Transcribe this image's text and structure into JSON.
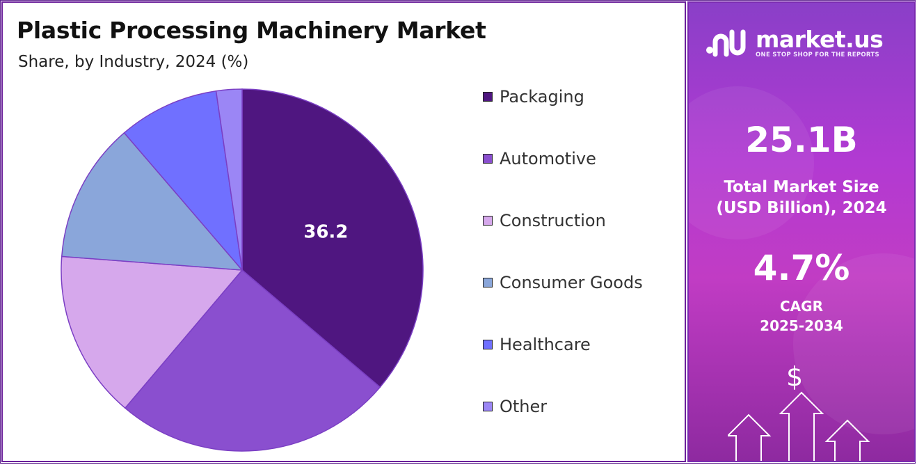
{
  "title": "Plastic Processing Machinery Market",
  "subtitle": "Share, by Industry, 2024 (%)",
  "chart_data": {
    "type": "pie",
    "title": "Plastic Processing Machinery Market",
    "subtitle": "Share, by Industry, 2024 (%)",
    "categories": [
      "Packaging",
      "Automotive",
      "Construction",
      "Consumer Goods",
      "Healthcare",
      "Other"
    ],
    "values": [
      36.2,
      25.0,
      15.0,
      12.5,
      9.0,
      2.3
    ],
    "colors": [
      "#4f1680",
      "#8a4fcf",
      "#d6a8ec",
      "#8aa6da",
      "#7070ff",
      "#9b86f5"
    ],
    "data_labels": [
      "36.2",
      "",
      "",
      "",
      "",
      ""
    ],
    "legend_position": "right"
  },
  "legend": [
    "Packaging",
    "Automotive",
    "Construction",
    "Consumer Goods",
    "Healthcare",
    "Other"
  ],
  "sidebar": {
    "brand": "market.us",
    "tagline": "ONE STOP SHOP FOR THE REPORTS",
    "market_size_value": "25.1B",
    "market_size_label_line1": "Total Market Size",
    "market_size_label_line2": "(USD Billion), 2024",
    "cagr_value": "4.7%",
    "cagr_label": "CAGR",
    "cagr_period": "2025-2034",
    "dollar_symbol": "$"
  }
}
